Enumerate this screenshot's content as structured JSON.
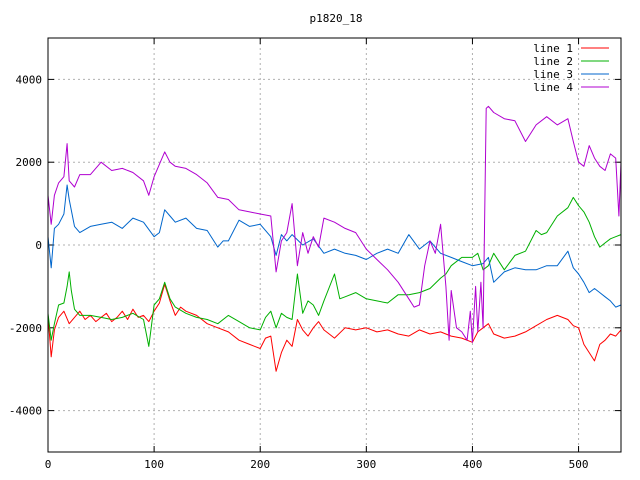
{
  "chart_data": {
    "type": "line",
    "title": "p1820_18",
    "xlabel": "",
    "ylabel": "",
    "xlim": [
      0,
      540
    ],
    "ylim": [
      -5000,
      5000
    ],
    "x_ticks": [
      0,
      100,
      200,
      300,
      400,
      500
    ],
    "y_ticks": [
      -4000,
      -2000,
      0,
      2000,
      4000
    ],
    "grid": true,
    "legend_position": "top-right",
    "series": [
      {
        "name": "line 1",
        "color": "#ff0000",
        "points": [
          [
            0,
            -1700
          ],
          [
            3,
            -2700
          ],
          [
            6,
            -2050
          ],
          [
            10,
            -1750
          ],
          [
            15,
            -1600
          ],
          [
            20,
            -1900
          ],
          [
            25,
            -1750
          ],
          [
            30,
            -1600
          ],
          [
            35,
            -1800
          ],
          [
            40,
            -1700
          ],
          [
            45,
            -1850
          ],
          [
            50,
            -1750
          ],
          [
            55,
            -1650
          ],
          [
            60,
            -1850
          ],
          [
            65,
            -1750
          ],
          [
            70,
            -1600
          ],
          [
            75,
            -1800
          ],
          [
            80,
            -1550
          ],
          [
            85,
            -1750
          ],
          [
            90,
            -1700
          ],
          [
            95,
            -1850
          ],
          [
            100,
            -1600
          ],
          [
            105,
            -1400
          ],
          [
            110,
            -950
          ],
          [
            115,
            -1350
          ],
          [
            120,
            -1700
          ],
          [
            125,
            -1500
          ],
          [
            130,
            -1600
          ],
          [
            140,
            -1700
          ],
          [
            150,
            -1900
          ],
          [
            160,
            -2000
          ],
          [
            170,
            -2100
          ],
          [
            180,
            -2300
          ],
          [
            190,
            -2400
          ],
          [
            200,
            -2500
          ],
          [
            205,
            -2250
          ],
          [
            210,
            -2200
          ],
          [
            215,
            -3050
          ],
          [
            220,
            -2600
          ],
          [
            225,
            -2300
          ],
          [
            230,
            -2450
          ],
          [
            235,
            -1800
          ],
          [
            240,
            -2050
          ],
          [
            245,
            -2200
          ],
          [
            250,
            -2000
          ],
          [
            255,
            -1850
          ],
          [
            260,
            -2050
          ],
          [
            270,
            -2250
          ],
          [
            280,
            -2000
          ],
          [
            290,
            -2050
          ],
          [
            300,
            -2000
          ],
          [
            310,
            -2100
          ],
          [
            320,
            -2050
          ],
          [
            330,
            -2150
          ],
          [
            340,
            -2200
          ],
          [
            350,
            -2050
          ],
          [
            360,
            -2150
          ],
          [
            370,
            -2100
          ],
          [
            380,
            -2200
          ],
          [
            390,
            -2250
          ],
          [
            400,
            -2350
          ],
          [
            405,
            -2100
          ],
          [
            410,
            -2000
          ],
          [
            415,
            -1900
          ],
          [
            420,
            -2150
          ],
          [
            430,
            -2250
          ],
          [
            440,
            -2200
          ],
          [
            450,
            -2100
          ],
          [
            460,
            -1950
          ],
          [
            470,
            -1800
          ],
          [
            480,
            -1700
          ],
          [
            490,
            -1800
          ],
          [
            495,
            -1950
          ],
          [
            500,
            -2000
          ],
          [
            505,
            -2400
          ],
          [
            510,
            -2600
          ],
          [
            515,
            -2800
          ],
          [
            520,
            -2400
          ],
          [
            525,
            -2300
          ],
          [
            530,
            -2150
          ],
          [
            535,
            -2200
          ],
          [
            540,
            -2050
          ]
        ]
      },
      {
        "name": "line 2",
        "color": "#00b000",
        "points": [
          [
            0,
            -1650
          ],
          [
            3,
            -2300
          ],
          [
            6,
            -1900
          ],
          [
            10,
            -1450
          ],
          [
            15,
            -1400
          ],
          [
            18,
            -1000
          ],
          [
            20,
            -650
          ],
          [
            22,
            -1100
          ],
          [
            25,
            -1550
          ],
          [
            30,
            -1700
          ],
          [
            40,
            -1700
          ],
          [
            50,
            -1750
          ],
          [
            60,
            -1800
          ],
          [
            70,
            -1750
          ],
          [
            80,
            -1650
          ],
          [
            90,
            -1800
          ],
          [
            95,
            -2450
          ],
          [
            100,
            -1450
          ],
          [
            105,
            -1300
          ],
          [
            110,
            -900
          ],
          [
            115,
            -1300
          ],
          [
            120,
            -1500
          ],
          [
            130,
            -1650
          ],
          [
            140,
            -1750
          ],
          [
            150,
            -1800
          ],
          [
            160,
            -1900
          ],
          [
            170,
            -1700
          ],
          [
            180,
            -1850
          ],
          [
            190,
            -2000
          ],
          [
            200,
            -2050
          ],
          [
            205,
            -1750
          ],
          [
            210,
            -1600
          ],
          [
            215,
            -2000
          ],
          [
            220,
            -1650
          ],
          [
            225,
            -1750
          ],
          [
            230,
            -1800
          ],
          [
            235,
            -700
          ],
          [
            240,
            -1650
          ],
          [
            245,
            -1350
          ],
          [
            250,
            -1450
          ],
          [
            255,
            -1700
          ],
          [
            260,
            -1350
          ],
          [
            270,
            -700
          ],
          [
            275,
            -1300
          ],
          [
            280,
            -1250
          ],
          [
            290,
            -1150
          ],
          [
            300,
            -1300
          ],
          [
            310,
            -1350
          ],
          [
            320,
            -1400
          ],
          [
            330,
            -1200
          ],
          [
            340,
            -1200
          ],
          [
            350,
            -1150
          ],
          [
            360,
            -1050
          ],
          [
            370,
            -800
          ],
          [
            375,
            -700
          ],
          [
            380,
            -500
          ],
          [
            390,
            -300
          ],
          [
            400,
            -300
          ],
          [
            405,
            -200
          ],
          [
            410,
            -600
          ],
          [
            415,
            -500
          ],
          [
            420,
            -200
          ],
          [
            430,
            -600
          ],
          [
            440,
            -250
          ],
          [
            450,
            -150
          ],
          [
            460,
            350
          ],
          [
            465,
            250
          ],
          [
            470,
            300
          ],
          [
            480,
            700
          ],
          [
            490,
            900
          ],
          [
            495,
            1150
          ],
          [
            500,
            950
          ],
          [
            505,
            800
          ],
          [
            510,
            550
          ],
          [
            515,
            200
          ],
          [
            520,
            -50
          ],
          [
            525,
            50
          ],
          [
            530,
            150
          ],
          [
            535,
            200
          ],
          [
            540,
            250
          ]
        ]
      },
      {
        "name": "line 3",
        "color": "#0066cc",
        "points": [
          [
            0,
            200
          ],
          [
            3,
            -550
          ],
          [
            6,
            400
          ],
          [
            10,
            500
          ],
          [
            15,
            750
          ],
          [
            18,
            1450
          ],
          [
            20,
            1100
          ],
          [
            25,
            450
          ],
          [
            30,
            300
          ],
          [
            40,
            450
          ],
          [
            50,
            500
          ],
          [
            60,
            550
          ],
          [
            70,
            400
          ],
          [
            80,
            650
          ],
          [
            90,
            550
          ],
          [
            100,
            200
          ],
          [
            105,
            300
          ],
          [
            110,
            850
          ],
          [
            115,
            700
          ],
          [
            120,
            550
          ],
          [
            130,
            650
          ],
          [
            140,
            400
          ],
          [
            150,
            350
          ],
          [
            160,
            -50
          ],
          [
            165,
            100
          ],
          [
            170,
            100
          ],
          [
            180,
            600
          ],
          [
            190,
            450
          ],
          [
            200,
            500
          ],
          [
            210,
            200
          ],
          [
            215,
            -250
          ],
          [
            220,
            250
          ],
          [
            225,
            100
          ],
          [
            230,
            250
          ],
          [
            240,
            0
          ],
          [
            250,
            150
          ],
          [
            260,
            -200
          ],
          [
            270,
            -100
          ],
          [
            280,
            -200
          ],
          [
            290,
            -250
          ],
          [
            300,
            -350
          ],
          [
            310,
            -200
          ],
          [
            320,
            -100
          ],
          [
            330,
            -200
          ],
          [
            340,
            250
          ],
          [
            350,
            -100
          ],
          [
            360,
            100
          ],
          [
            370,
            -200
          ],
          [
            380,
            -300
          ],
          [
            390,
            -400
          ],
          [
            400,
            -500
          ],
          [
            410,
            -450
          ],
          [
            415,
            -300
          ],
          [
            420,
            -900
          ],
          [
            430,
            -650
          ],
          [
            440,
            -550
          ],
          [
            450,
            -600
          ],
          [
            460,
            -600
          ],
          [
            470,
            -500
          ],
          [
            480,
            -500
          ],
          [
            490,
            -150
          ],
          [
            495,
            -550
          ],
          [
            500,
            -700
          ],
          [
            505,
            -900
          ],
          [
            510,
            -1150
          ],
          [
            515,
            -1050
          ],
          [
            520,
            -1150
          ],
          [
            525,
            -1250
          ],
          [
            530,
            -1350
          ],
          [
            535,
            -1500
          ],
          [
            540,
            -1450
          ]
        ]
      },
      {
        "name": "line 4",
        "color": "#b000d0",
        "points": [
          [
            0,
            1200
          ],
          [
            3,
            500
          ],
          [
            6,
            1200
          ],
          [
            10,
            1500
          ],
          [
            15,
            1650
          ],
          [
            18,
            2450
          ],
          [
            20,
            1550
          ],
          [
            25,
            1400
          ],
          [
            30,
            1700
          ],
          [
            40,
            1700
          ],
          [
            50,
            2000
          ],
          [
            60,
            1800
          ],
          [
            70,
            1850
          ],
          [
            80,
            1750
          ],
          [
            90,
            1550
          ],
          [
            95,
            1200
          ],
          [
            100,
            1650
          ],
          [
            105,
            1950
          ],
          [
            110,
            2250
          ],
          [
            115,
            2000
          ],
          [
            120,
            1900
          ],
          [
            130,
            1850
          ],
          [
            140,
            1700
          ],
          [
            150,
            1500
          ],
          [
            160,
            1150
          ],
          [
            170,
            1100
          ],
          [
            180,
            850
          ],
          [
            190,
            800
          ],
          [
            200,
            750
          ],
          [
            210,
            700
          ],
          [
            215,
            -650
          ],
          [
            220,
            100
          ],
          [
            225,
            300
          ],
          [
            230,
            1000
          ],
          [
            235,
            -500
          ],
          [
            240,
            300
          ],
          [
            245,
            -200
          ],
          [
            250,
            200
          ],
          [
            255,
            -50
          ],
          [
            260,
            650
          ],
          [
            270,
            550
          ],
          [
            280,
            400
          ],
          [
            290,
            300
          ],
          [
            300,
            -100
          ],
          [
            310,
            -350
          ],
          [
            320,
            -600
          ],
          [
            330,
            -900
          ],
          [
            340,
            -1300
          ],
          [
            345,
            -1500
          ],
          [
            350,
            -1450
          ],
          [
            355,
            -500
          ],
          [
            360,
            100
          ],
          [
            365,
            -200
          ],
          [
            370,
            500
          ],
          [
            375,
            -1000
          ],
          [
            378,
            -2300
          ],
          [
            380,
            -1100
          ],
          [
            385,
            -2000
          ],
          [
            390,
            -2100
          ],
          [
            395,
            -2300
          ],
          [
            398,
            -1600
          ],
          [
            400,
            -2350
          ],
          [
            403,
            -1000
          ],
          [
            405,
            -2100
          ],
          [
            408,
            -900
          ],
          [
            410,
            -2000
          ],
          [
            413,
            3300
          ],
          [
            415,
            3350
          ],
          [
            420,
            3200
          ],
          [
            430,
            3050
          ],
          [
            440,
            3000
          ],
          [
            450,
            2500
          ],
          [
            460,
            2900
          ],
          [
            470,
            3100
          ],
          [
            480,
            2900
          ],
          [
            490,
            3050
          ],
          [
            495,
            2500
          ],
          [
            500,
            2000
          ],
          [
            505,
            1900
          ],
          [
            510,
            2400
          ],
          [
            515,
            2100
          ],
          [
            520,
            1900
          ],
          [
            525,
            1800
          ],
          [
            530,
            2200
          ],
          [
            535,
            2100
          ],
          [
            538,
            700
          ],
          [
            540,
            2000
          ]
        ]
      }
    ]
  }
}
